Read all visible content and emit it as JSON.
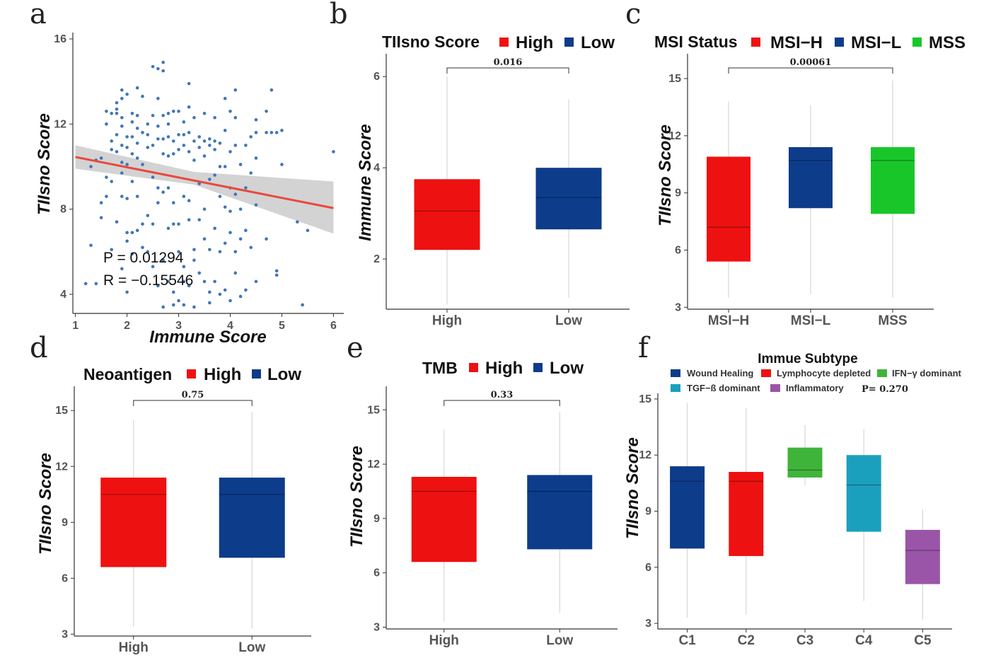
{
  "colors": {
    "red": "#ee1111",
    "blue": "#0d3c8a",
    "green": "#19c62a",
    "c3green": "#3fb43a",
    "teal": "#1aa0bd",
    "purple": "#9a55a8",
    "point": "#3f76b6",
    "fitline": "#e9483c",
    "band": "#c8c8c8"
  },
  "panels": {
    "a": {
      "label": "a",
      "ylabel": "TIIsno Score",
      "xlabel": "Immune Score",
      "stat_p": "P = 0.01294",
      "stat_r": "R =  −0.15546"
    },
    "b": {
      "label": "b",
      "ylabel": "Immune Score",
      "legend_title": "TIIsno Score",
      "legend": [
        "High",
        "Low"
      ],
      "pvalue": "0.016"
    },
    "c": {
      "label": "c",
      "ylabel": "TIIsno Score",
      "legend_title": "MSI Status",
      "legend": [
        "MSI−H",
        "MSI−L",
        "MSS"
      ],
      "pvalue": "0.00061"
    },
    "d": {
      "label": "d",
      "ylabel": "TIIsno Score",
      "legend_title": "Neoantigen",
      "legend": [
        "High",
        "Low"
      ],
      "pvalue": "0.75"
    },
    "e": {
      "label": "e",
      "ylabel": "TIIsno Score",
      "legend_title": "TMB",
      "legend": [
        "High",
        "Low"
      ],
      "pvalue": "0.33"
    },
    "f": {
      "label": "f",
      "ylabel": "TIIsno Score",
      "legend_title": "Immue Subtype",
      "legend": [
        "Wound Healing",
        "Lymphocyte depleted",
        "IFN−γ dominant",
        "TGF−ß dominant",
        "Inflammatory"
      ],
      "pvalue": "P= 0.270"
    }
  },
  "chart_data": [
    {
      "id": "a",
      "type": "scatter",
      "xlabel": "Immune Score",
      "ylabel": "TIIsno Score",
      "xlim": [
        0.95,
        6.2
      ],
      "ylim": [
        3.1,
        16.3
      ],
      "xticks": [
        1,
        2,
        3,
        4,
        5,
        6
      ],
      "yticks": [
        4,
        8,
        12,
        16
      ],
      "annotations": [
        "P = 0.01294",
        "R =  −0.15546"
      ],
      "fit": {
        "x": [
          1.0,
          6.0
        ],
        "y": [
          10.45,
          8.05
        ]
      },
      "band": {
        "x": [
          1.0,
          3.3,
          6.0
        ],
        "upper": [
          11.0,
          9.75,
          9.3
        ],
        "lower": [
          9.9,
          9.15,
          6.85
        ]
      },
      "points": [
        [
          1.4,
          4.5
        ],
        [
          1.2,
          4.5
        ],
        [
          1.3,
          6.3
        ],
        [
          1.3,
          10.0
        ],
        [
          1.4,
          10.3
        ],
        [
          1.5,
          10.4
        ],
        [
          1.5,
          8.3
        ],
        [
          1.5,
          7.6
        ],
        [
          1.6,
          8.6
        ],
        [
          1.6,
          9.5
        ],
        [
          1.6,
          12.0
        ],
        [
          1.6,
          12.6
        ],
        [
          1.7,
          12.5
        ],
        [
          1.7,
          11.2
        ],
        [
          1.7,
          10.8
        ],
        [
          1.7,
          9.3
        ],
        [
          1.7,
          6.1
        ],
        [
          1.8,
          12.7
        ],
        [
          1.8,
          12.5
        ],
        [
          1.8,
          13.0
        ],
        [
          1.8,
          11.5
        ],
        [
          1.8,
          10.7
        ],
        [
          1.8,
          7.4
        ],
        [
          1.9,
          13.6
        ],
        [
          1.9,
          13.2
        ],
        [
          1.9,
          12.3
        ],
        [
          1.9,
          11.9
        ],
        [
          1.9,
          11.0
        ],
        [
          1.9,
          10.2
        ],
        [
          1.9,
          9.7
        ],
        [
          1.9,
          8.6
        ],
        [
          1.9,
          5.2
        ],
        [
          2.0,
          13.4
        ],
        [
          2.0,
          11.4
        ],
        [
          2.0,
          10.9
        ],
        [
          2.0,
          10.1
        ],
        [
          2.0,
          8.5
        ],
        [
          2.0,
          6.9
        ],
        [
          2.0,
          6.5
        ],
        [
          2.0,
          4.1
        ],
        [
          2.1,
          12.5
        ],
        [
          2.1,
          12.1
        ],
        [
          2.1,
          11.4
        ],
        [
          2.1,
          10.6
        ],
        [
          2.1,
          9.3
        ],
        [
          2.1,
          6.9
        ],
        [
          2.1,
          5.9
        ],
        [
          2.2,
          13.7
        ],
        [
          2.2,
          12.4
        ],
        [
          2.2,
          11.8
        ],
        [
          2.2,
          11.1
        ],
        [
          2.2,
          10.4
        ],
        [
          2.2,
          8.6
        ],
        [
          2.2,
          7.0
        ],
        [
          2.3,
          13.3
        ],
        [
          2.3,
          11.6
        ],
        [
          2.3,
          10.1
        ],
        [
          2.3,
          7.3
        ],
        [
          2.3,
          6.2
        ],
        [
          2.4,
          12.0
        ],
        [
          2.4,
          11.5
        ],
        [
          2.4,
          10.9
        ],
        [
          2.4,
          7.7
        ],
        [
          2.4,
          6.0
        ],
        [
          2.5,
          14.7
        ],
        [
          2.5,
          12.4
        ],
        [
          2.5,
          11.0
        ],
        [
          2.5,
          9.5
        ],
        [
          2.5,
          7.3
        ],
        [
          2.5,
          5.3
        ],
        [
          2.6,
          14.6
        ],
        [
          2.6,
          13.2
        ],
        [
          2.6,
          11.9
        ],
        [
          2.6,
          11.3
        ],
        [
          2.6,
          9.0
        ],
        [
          2.6,
          8.3
        ],
        [
          2.6,
          4.4
        ],
        [
          2.7,
          14.9
        ],
        [
          2.7,
          14.5
        ],
        [
          2.7,
          12.4
        ],
        [
          2.7,
          11.3
        ],
        [
          2.7,
          10.6
        ],
        [
          2.7,
          8.8
        ],
        [
          2.7,
          5.6
        ],
        [
          2.7,
          3.4
        ],
        [
          2.8,
          12.5
        ],
        [
          2.8,
          12.0
        ],
        [
          2.8,
          11.4
        ],
        [
          2.8,
          10.5
        ],
        [
          2.8,
          9.0
        ],
        [
          2.8,
          7.1
        ],
        [
          2.8,
          4.6
        ],
        [
          2.9,
          12.6
        ],
        [
          2.9,
          11.2
        ],
        [
          2.9,
          10.6
        ],
        [
          2.9,
          8.3
        ],
        [
          2.9,
          7.3
        ],
        [
          2.9,
          4.1
        ],
        [
          2.9,
          3.5
        ],
        [
          3.0,
          12.6
        ],
        [
          3.0,
          11.5
        ],
        [
          3.0,
          10.8
        ],
        [
          3.0,
          7.3
        ],
        [
          3.0,
          6.0
        ],
        [
          3.0,
          3.7
        ],
        [
          3.1,
          12.1
        ],
        [
          3.1,
          11.5
        ],
        [
          3.1,
          11.0
        ],
        [
          3.1,
          8.6
        ],
        [
          3.1,
          5.3
        ],
        [
          3.1,
          4.6
        ],
        [
          3.1,
          3.5
        ],
        [
          3.2,
          13.9
        ],
        [
          3.2,
          12.8
        ],
        [
          3.2,
          11.6
        ],
        [
          3.2,
          10.7
        ],
        [
          3.2,
          8.4
        ],
        [
          3.2,
          7.5
        ],
        [
          3.2,
          4.4
        ],
        [
          3.3,
          12.3
        ],
        [
          3.3,
          11.2
        ],
        [
          3.3,
          10.3
        ],
        [
          3.3,
          6.1
        ],
        [
          3.3,
          5.6
        ],
        [
          3.3,
          3.4
        ],
        [
          3.4,
          11.4
        ],
        [
          3.4,
          10.9
        ],
        [
          3.4,
          9.2
        ],
        [
          3.4,
          7.5
        ],
        [
          3.4,
          5.0
        ],
        [
          3.5,
          12.5
        ],
        [
          3.5,
          11.2
        ],
        [
          3.5,
          10.5
        ],
        [
          3.5,
          8.0
        ],
        [
          3.5,
          6.6
        ],
        [
          3.5,
          4.6
        ],
        [
          3.6,
          11.3
        ],
        [
          3.6,
          11.0
        ],
        [
          3.6,
          9.4
        ],
        [
          3.6,
          6.1
        ],
        [
          3.6,
          4.1
        ],
        [
          3.6,
          3.6
        ],
        [
          3.7,
          12.3
        ],
        [
          3.7,
          11.2
        ],
        [
          3.7,
          10.8
        ],
        [
          3.7,
          9.6
        ],
        [
          3.7,
          7.1
        ],
        [
          3.7,
          4.6
        ],
        [
          3.8,
          11.1
        ],
        [
          3.8,
          10.0
        ],
        [
          3.8,
          8.6
        ],
        [
          3.8,
          6.0
        ],
        [
          3.8,
          4.0
        ],
        [
          3.9,
          13.2
        ],
        [
          3.9,
          11.7
        ],
        [
          3.9,
          10.0
        ],
        [
          3.9,
          8.1
        ],
        [
          3.9,
          6.4
        ],
        [
          3.9,
          4.2
        ],
        [
          4.0,
          12.6
        ],
        [
          4.0,
          10.7
        ],
        [
          4.0,
          9.0
        ],
        [
          4.0,
          7.9
        ],
        [
          4.0,
          6.9
        ],
        [
          4.0,
          3.7
        ],
        [
          4.1,
          13.6
        ],
        [
          4.1,
          12.3
        ],
        [
          4.1,
          11.0
        ],
        [
          4.1,
          8.7
        ],
        [
          4.1,
          6.0
        ],
        [
          4.1,
          5.0
        ],
        [
          4.2,
          10.1
        ],
        [
          4.2,
          8.0
        ],
        [
          4.2,
          6.6
        ],
        [
          4.2,
          3.9
        ],
        [
          4.3,
          11.0
        ],
        [
          4.3,
          9.0
        ],
        [
          4.3,
          7.0
        ],
        [
          4.3,
          4.2
        ],
        [
          4.4,
          11.4
        ],
        [
          4.4,
          9.7
        ],
        [
          4.4,
          6.2
        ],
        [
          4.5,
          12.2
        ],
        [
          4.5,
          11.6
        ],
        [
          4.5,
          10.4
        ],
        [
          4.5,
          8.2
        ],
        [
          4.5,
          4.6
        ],
        [
          4.7,
          12.6
        ],
        [
          4.7,
          11.6
        ],
        [
          4.7,
          6.6
        ],
        [
          4.8,
          11.6
        ],
        [
          4.8,
          13.6
        ],
        [
          4.9,
          11.6
        ],
        [
          4.9,
          5.1
        ],
        [
          4.9,
          4.9
        ],
        [
          5.0,
          11.7
        ],
        [
          5.0,
          10.1
        ],
        [
          5.3,
          7.4
        ],
        [
          5.5,
          7.0
        ],
        [
          5.4,
          3.5
        ],
        [
          6.0,
          10.7
        ]
      ]
    },
    {
      "id": "b",
      "type": "box",
      "ylabel": "Immune Score",
      "categories": [
        "High",
        "Low"
      ],
      "ylim": [
        0.9,
        6.5
      ],
      "yticks": [
        2,
        4,
        6
      ],
      "comparison": {
        "from": "High",
        "to": "Low",
        "label": "0.016"
      },
      "boxes": [
        {
          "category": "High",
          "min": 1.0,
          "q1": 2.2,
          "median": 3.05,
          "q3": 3.75,
          "max": 6.0,
          "color": "#ee1111"
        },
        {
          "category": "Low",
          "min": 1.15,
          "q1": 2.65,
          "median": 3.35,
          "q3": 4.0,
          "max": 5.5,
          "color": "#0d3c8a"
        }
      ]
    },
    {
      "id": "c",
      "type": "box",
      "ylabel": "TIIsno Score",
      "categories": [
        "MSI−H",
        "MSI−L",
        "MSS"
      ],
      "ylim": [
        2.9,
        16.3
      ],
      "yticks": [
        3,
        6,
        9,
        12,
        15
      ],
      "comparison": {
        "from": "MSI−H",
        "to": "MSS",
        "label": "0.00061"
      },
      "boxes": [
        {
          "category": "MSI−H",
          "min": 3.5,
          "q1": 5.4,
          "median": 7.2,
          "q3": 10.9,
          "max": 13.8,
          "color": "#ee1111"
        },
        {
          "category": "MSI−L",
          "min": 3.7,
          "q1": 8.2,
          "median": 10.7,
          "q3": 11.4,
          "max": 13.6,
          "color": "#0d3c8a"
        },
        {
          "category": "MSS",
          "min": 3.5,
          "q1": 7.9,
          "median": 10.7,
          "q3": 11.4,
          "max": 14.9,
          "color": "#19c62a"
        }
      ]
    },
    {
      "id": "d",
      "type": "box",
      "ylabel": "TIIsno Score",
      "categories": [
        "High",
        "Low"
      ],
      "ylim": [
        2.9,
        16.3
      ],
      "yticks": [
        3,
        6,
        9,
        12,
        15
      ],
      "comparison": {
        "from": "High",
        "to": "Low",
        "label": "0.75"
      },
      "boxes": [
        {
          "category": "High",
          "min": 3.4,
          "q1": 6.6,
          "median": 10.5,
          "q3": 11.4,
          "max": 14.5,
          "color": "#ee1111"
        },
        {
          "category": "Low",
          "min": 3.3,
          "q1": 7.1,
          "median": 10.5,
          "q3": 11.4,
          "max": 14.9,
          "color": "#0d3c8a"
        }
      ]
    },
    {
      "id": "e",
      "type": "box",
      "ylabel": "TIIsno Score",
      "categories": [
        "High",
        "Low"
      ],
      "ylim": [
        2.9,
        16.3
      ],
      "yticks": [
        3,
        6,
        9,
        12,
        15
      ],
      "comparison": {
        "from": "High",
        "to": "Low",
        "label": "0.33"
      },
      "boxes": [
        {
          "category": "High",
          "min": 3.3,
          "q1": 6.6,
          "median": 10.5,
          "q3": 11.3,
          "max": 13.9,
          "color": "#ee1111"
        },
        {
          "category": "Low",
          "min": 3.8,
          "q1": 7.3,
          "median": 10.5,
          "q3": 11.4,
          "max": 14.9,
          "color": "#0d3c8a"
        }
      ]
    },
    {
      "id": "f",
      "type": "box",
      "title": "Immue Subtype",
      "ylabel": "TIIsno Score",
      "categories": [
        "C1",
        "C2",
        "C3",
        "C4",
        "C5"
      ],
      "ylim": [
        2.7,
        15.3
      ],
      "yticks": [
        3,
        6,
        9,
        12,
        15
      ],
      "annotation": "P= 0.270",
      "boxes": [
        {
          "category": "C1",
          "min": 3.3,
          "q1": 7.0,
          "median": 10.6,
          "q3": 11.4,
          "max": 14.8,
          "color": "#0d3c8a"
        },
        {
          "category": "C2",
          "min": 3.5,
          "q1": 6.6,
          "median": 10.6,
          "q3": 11.1,
          "max": 14.5,
          "color": "#ee1111"
        },
        {
          "category": "C3",
          "min": 10.4,
          "q1": 10.8,
          "median": 11.2,
          "q3": 12.4,
          "max": 13.6,
          "color": "#3fb43a"
        },
        {
          "category": "C4",
          "min": 4.2,
          "q1": 7.9,
          "median": 10.4,
          "q3": 12.0,
          "max": 13.4,
          "color": "#1aa0bd"
        },
        {
          "category": "C5",
          "min": 3.2,
          "q1": 5.1,
          "median": 6.9,
          "q3": 8.0,
          "max": 9.1,
          "color": "#9a55a8"
        }
      ]
    }
  ]
}
